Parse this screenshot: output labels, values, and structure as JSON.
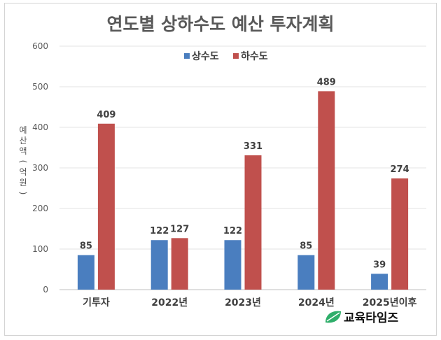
{
  "chart_data": {
    "type": "bar",
    "title": "연도별 상하수도 예산 투자계획",
    "ylabel": "예산액(억원)",
    "xlabel": "",
    "ylim": [
      0,
      600
    ],
    "yticks": [
      0,
      100,
      200,
      300,
      400,
      500,
      600
    ],
    "grid": true,
    "legend_position": "top-center",
    "categories": [
      "기투자",
      "2022년",
      "2023년",
      "2024년",
      "2025년이후"
    ],
    "series": [
      {
        "name": "상수도",
        "color": "#4a7ebf",
        "values": [
          85,
          122,
          122,
          85,
          39
        ]
      },
      {
        "name": "하수도",
        "color": "#c0504d",
        "values": [
          409,
          127,
          331,
          489,
          274
        ]
      }
    ]
  },
  "watermark": {
    "text": "교육타임즈",
    "icon": "leaf-logo-icon",
    "color": "#2fae6a"
  }
}
